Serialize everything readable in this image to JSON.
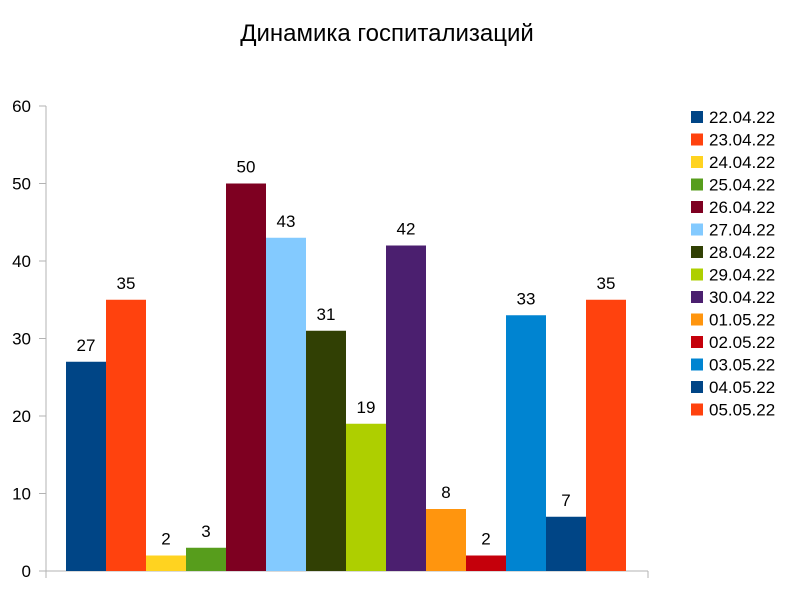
{
  "chart_data": {
    "type": "bar",
    "title": "Динамика госпитализаций",
    "xlabel": "",
    "ylabel": "",
    "ylim": [
      0,
      60
    ],
    "yticks": [
      0,
      10,
      20,
      30,
      40,
      50,
      60
    ],
    "grid": false,
    "legend": "right",
    "series": [
      {
        "name": "22.04.22",
        "value": 27,
        "color": "#004586"
      },
      {
        "name": "23.04.22",
        "value": 35,
        "color": "#ff420e"
      },
      {
        "name": "24.04.22",
        "value": 2,
        "color": "#ffd320"
      },
      {
        "name": "25.04.22",
        "value": 3,
        "color": "#579d1c"
      },
      {
        "name": "26.04.22",
        "value": 50,
        "color": "#7e0021"
      },
      {
        "name": "27.04.22",
        "value": 43,
        "color": "#83caff"
      },
      {
        "name": "28.04.22",
        "value": 31,
        "color": "#314004"
      },
      {
        "name": "29.04.22",
        "value": 19,
        "color": "#aecf00"
      },
      {
        "name": "30.04.22",
        "value": 42,
        "color": "#4b1f6f"
      },
      {
        "name": "01.05.22",
        "value": 8,
        "color": "#ff950e"
      },
      {
        "name": "02.05.22",
        "value": 2,
        "color": "#c5000b"
      },
      {
        "name": "03.05.22",
        "value": 33,
        "color": "#0084d1"
      },
      {
        "name": "04.05.22",
        "value": 7,
        "color": "#004586"
      },
      {
        "name": "05.05.22",
        "value": 35,
        "color": "#ff420e"
      }
    ]
  }
}
